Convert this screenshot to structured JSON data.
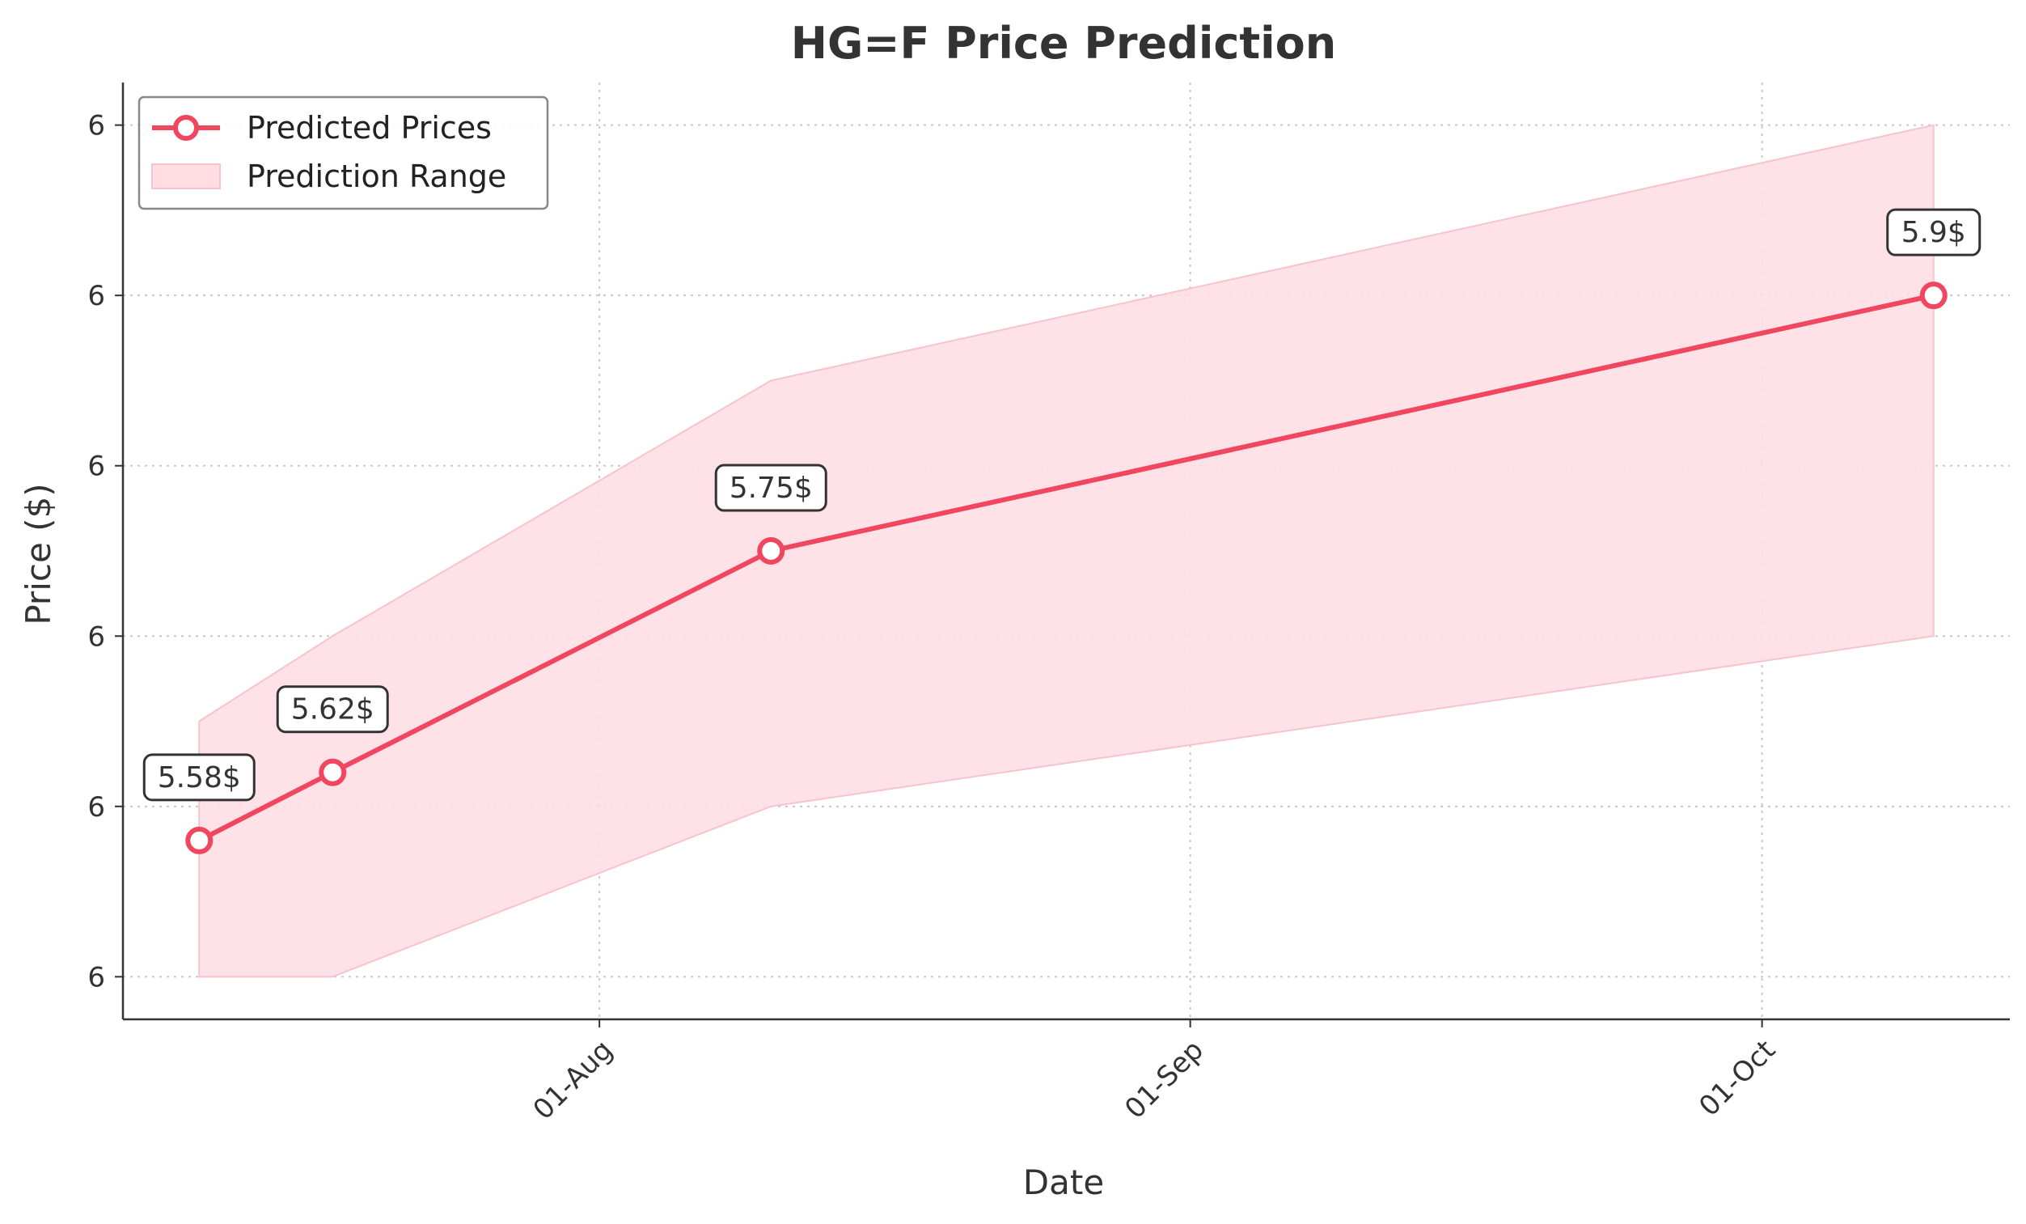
{
  "chart_data": {
    "type": "line",
    "title": "HG=F Price Prediction",
    "xlabel": "Date",
    "ylabel": "Price ($)",
    "x_ticks": [
      {
        "date": "2024-08-01",
        "label": "01-Aug"
      },
      {
        "date": "2024-09-01",
        "label": "01-Sep"
      },
      {
        "date": "2024-10-01",
        "label": "01-Oct"
      }
    ],
    "y_ticks": [
      5.5,
      5.6,
      5.7,
      5.8,
      5.9,
      6.0
    ],
    "y_tick_labels": [
      "6",
      "6",
      "6",
      "6",
      "6",
      "6"
    ],
    "xlim": [
      "2024-07-07",
      "2024-10-14"
    ],
    "ylim": [
      5.475,
      6.025
    ],
    "grid": true,
    "legend_position": "top-left",
    "series": [
      {
        "name": "Predicted Prices",
        "color": "#f0465f",
        "x": [
          "2024-07-11",
          "2024-07-18",
          "2024-08-10",
          "2024-10-10"
        ],
        "y": [
          5.58,
          5.62,
          5.75,
          5.9
        ],
        "labels": [
          "5.58$",
          "5.62$",
          "5.75$",
          "5.9$"
        ]
      }
    ],
    "range": {
      "name": "Prediction Range",
      "color": "#ffdde3",
      "x": [
        "2024-07-11",
        "2024-07-18",
        "2024-08-10",
        "2024-10-10"
      ],
      "lower": [
        5.5,
        5.5,
        5.6,
        5.7
      ],
      "upper": [
        5.65,
        5.7,
        5.85,
        6.0
      ]
    }
  }
}
